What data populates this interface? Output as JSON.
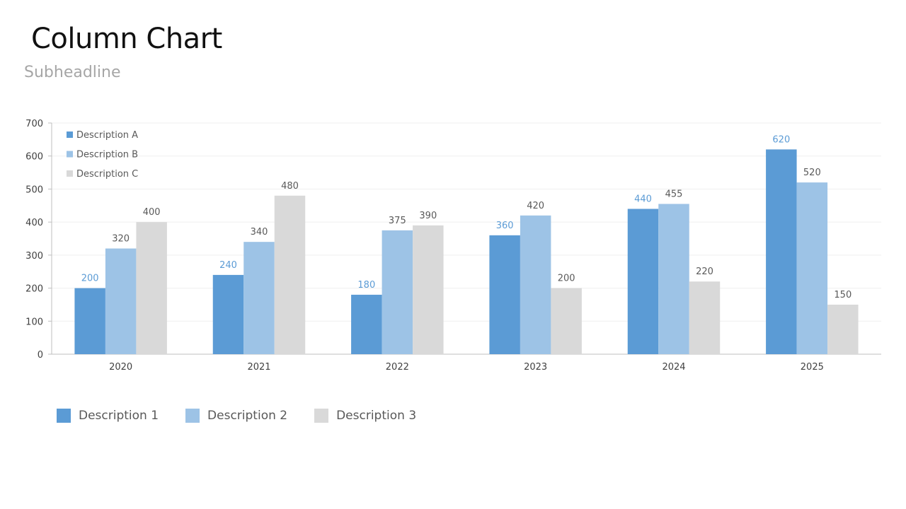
{
  "title": "Column Chart",
  "subtitle": "Subheadline",
  "colors": {
    "series_a": "#5b9bd5",
    "series_b": "#9dc3e6",
    "series_c": "#d9d9d9",
    "label_a": "#5b9bd5",
    "label_other": "#595959",
    "axis_text": "#404040",
    "gridline": "#efefef",
    "axis_line": "#bfbfbf"
  },
  "bottom_legend": [
    {
      "label": "Description 1",
      "color": "#5b9bd5"
    },
    {
      "label": "Description 2",
      "color": "#9dc3e6"
    },
    {
      "label": "Description 3",
      "color": "#d9d9d9"
    }
  ],
  "chart_data": {
    "type": "bar",
    "title": "",
    "xlabel": "",
    "ylabel": "",
    "categories": [
      "2020",
      "2021",
      "2022",
      "2023",
      "2024",
      "2025"
    ],
    "series": [
      {
        "name": "Description A",
        "values": [
          200,
          240,
          180,
          360,
          440,
          620
        ]
      },
      {
        "name": "Description B",
        "values": [
          320,
          340,
          375,
          420,
          455,
          520
        ]
      },
      {
        "name": "Description C",
        "values": [
          400,
          480,
          390,
          200,
          220,
          150
        ]
      }
    ],
    "ylim": [
      0,
      700
    ],
    "yticks": [
      0,
      100,
      200,
      300,
      400,
      500,
      600,
      700
    ],
    "grid": true,
    "legend_position": "top-left",
    "data_labels": true
  }
}
